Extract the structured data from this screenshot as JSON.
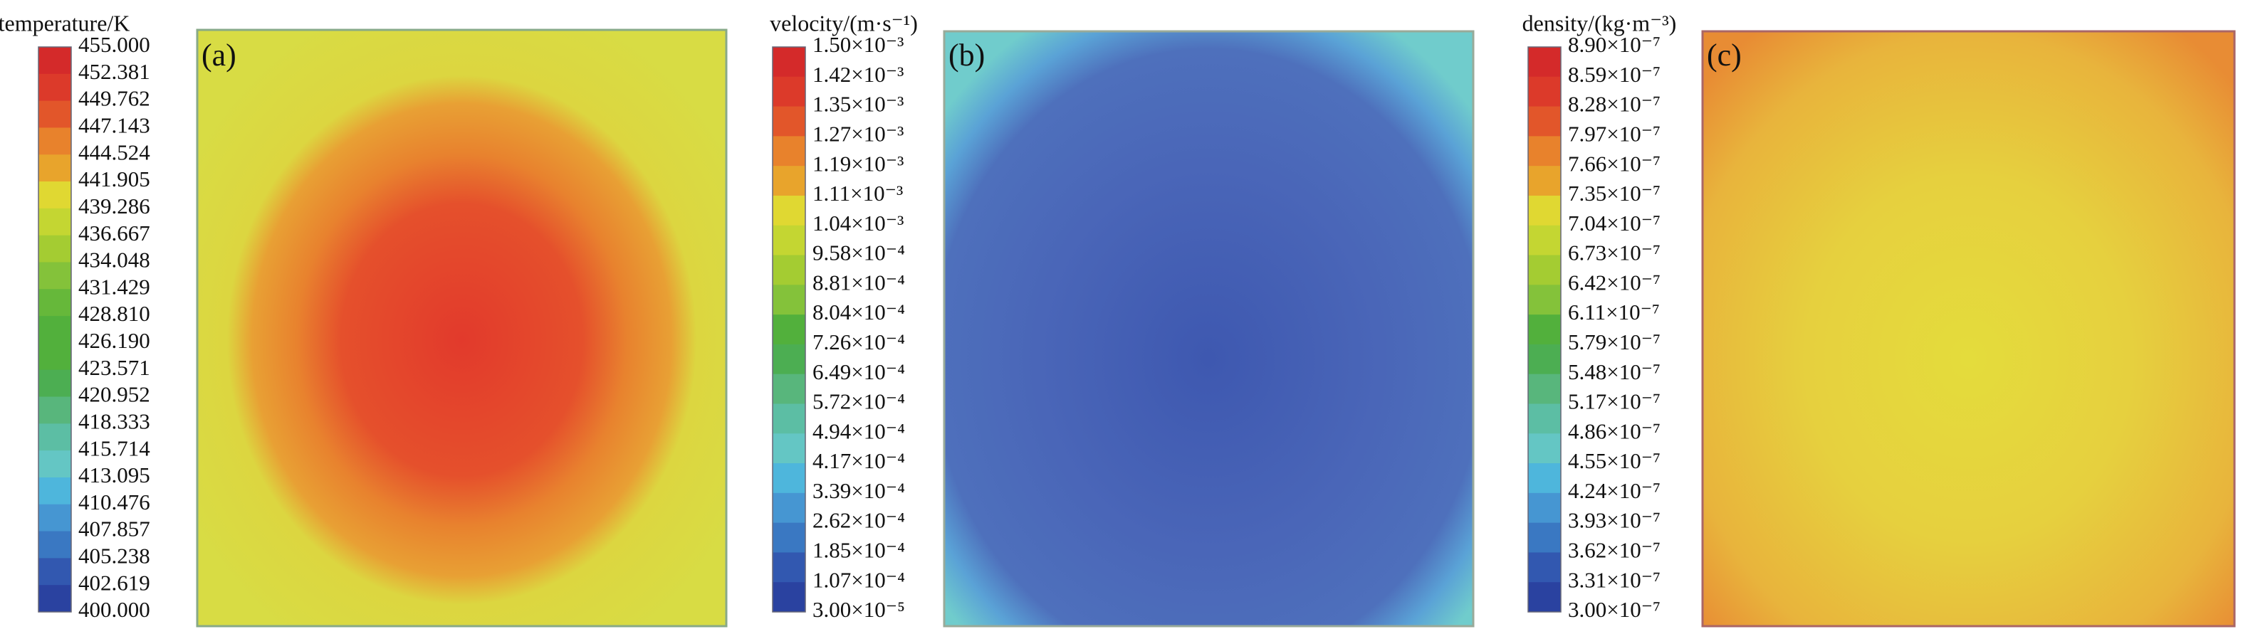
{
  "colormap": [
    "#d42a2a",
    "#dc3a2a",
    "#e2562a",
    "#e8822c",
    "#e8a42c",
    "#e0d832",
    "#c4d632",
    "#a4cc32",
    "#84c23a",
    "#66b83a",
    "#52b03c",
    "#4cae52",
    "#58b67c",
    "#5cbea4",
    "#64c6c4",
    "#4eb6dc",
    "#4696d2",
    "#3a78c2",
    "#3258b0",
    "#2a42a0"
  ],
  "panels": [
    {
      "label": "(a)",
      "colorbar_title": "temperature/K",
      "tick_labels": [
        "455.000",
        "452.381",
        "449.762",
        "447.143",
        "444.524",
        "441.905",
        "439.286",
        "436.667",
        "434.048",
        "431.429",
        "428.810",
        "426.190",
        "423.571",
        "420.952",
        "418.333",
        "415.714",
        "413.095",
        "410.476",
        "407.857",
        "405.238",
        "402.619",
        "400.000"
      ]
    },
    {
      "label": "(b)",
      "colorbar_title": "velocity/(m·s⁻¹)",
      "tick_labels": [
        "1.50×10⁻³",
        "1.42×10⁻³",
        "1.35×10⁻³",
        "1.27×10⁻³",
        "1.19×10⁻³",
        "1.11×10⁻³",
        "1.04×10⁻³",
        "9.58×10⁻⁴",
        "8.81×10⁻⁴",
        "8.04×10⁻⁴",
        "7.26×10⁻⁴",
        "6.49×10⁻⁴",
        "5.72×10⁻⁴",
        "4.94×10⁻⁴",
        "4.17×10⁻⁴",
        "3.39×10⁻⁴",
        "2.62×10⁻⁴",
        "1.85×10⁻⁴",
        "1.07×10⁻⁴",
        "3.00×10⁻⁵"
      ]
    },
    {
      "label": "(c)",
      "colorbar_title": "density/(kg·m⁻³)",
      "tick_labels": [
        "8.90×10⁻⁷",
        "8.59×10⁻⁷",
        "8.28×10⁻⁷",
        "7.97×10⁻⁷",
        "7.66×10⁻⁷",
        "7.35×10⁻⁷",
        "7.04×10⁻⁷",
        "6.73×10⁻⁷",
        "6.42×10⁻⁷",
        "6.11×10⁻⁷",
        "5.79×10⁻⁷",
        "5.48×10⁻⁷",
        "5.17×10⁻⁷",
        "4.86×10⁻⁷",
        "4.55×10⁻⁷",
        "4.24×10⁻⁷",
        "3.93×10⁻⁷",
        "3.62×10⁻⁷",
        "3.31×10⁻⁷",
        "3.00×10⁻⁷"
      ]
    }
  ]
}
